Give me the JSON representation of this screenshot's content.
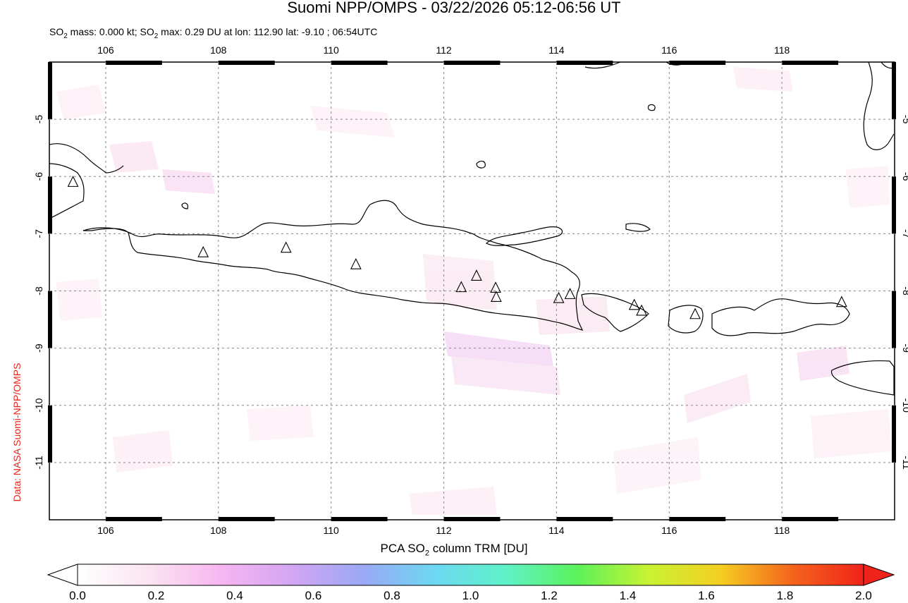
{
  "title": "Suomi NPP/OMPS - 03/22/2026 05:12-06:56 UT",
  "subtitle": {
    "prefix": "SO",
    "sub": "2",
    "mid": " mass: 0.000 kt; SO",
    "sub2": "2",
    "rest": " max: 0.29 DU at lon: 112.90 lat: -9.10 ; 06:54UTC"
  },
  "credit": "Data: NASA Suomi-NPP/OMPS",
  "map": {
    "lon_ticks": [
      "106",
      "108",
      "110",
      "112",
      "114",
      "116",
      "118"
    ],
    "lat_ticks": [
      "-5",
      "-6",
      "-7",
      "-8",
      "-9",
      "-10",
      "-11"
    ],
    "lon_range": [
      105,
      120
    ],
    "lat_range": [
      -12,
      -4
    ],
    "volcano_icon": "triangle-icon",
    "volcanoes": [
      {
        "lon": 105.42,
        "lat": -6.1
      },
      {
        "lon": 107.73,
        "lat": -7.33
      },
      {
        "lon": 109.2,
        "lat": -7.25
      },
      {
        "lon": 110.44,
        "lat": -7.54
      },
      {
        "lon": 112.31,
        "lat": -7.94
      },
      {
        "lon": 112.58,
        "lat": -7.74
      },
      {
        "lon": 112.92,
        "lat": -7.95
      },
      {
        "lon": 112.93,
        "lat": -8.11
      },
      {
        "lon": 114.04,
        "lat": -8.13
      },
      {
        "lon": 114.24,
        "lat": -8.06
      },
      {
        "lon": 115.38,
        "lat": -8.25
      },
      {
        "lon": 115.51,
        "lat": -8.35
      },
      {
        "lon": 116.46,
        "lat": -8.41
      },
      {
        "lon": 119.06,
        "lat": -8.2
      }
    ]
  },
  "colorbar": {
    "title_prefix": "PCA SO",
    "title_sub": "2",
    "title_rest": " column TRM [DU]",
    "labels": [
      "0.0",
      "0.2",
      "0.4",
      "0.6",
      "0.8",
      "1.0",
      "1.2",
      "1.4",
      "1.6",
      "1.8",
      "2.0"
    ],
    "colors": [
      "#ffffff",
      "#fbe4f0",
      "#f7b6f0",
      "#d3a6f3",
      "#9aa8f5",
      "#6dd8f2",
      "#5ef2c8",
      "#5cf25a",
      "#c9f232",
      "#f5ce22",
      "#f5641c",
      "#f0231a"
    ]
  }
}
